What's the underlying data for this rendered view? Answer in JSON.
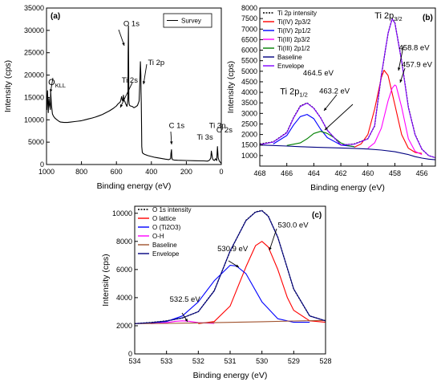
{
  "chart_data": [
    {
      "panel": "(a)",
      "type": "line",
      "xlabel": "Binding energy (eV)",
      "ylabel": "Intensity (cps)",
      "xlim": [
        1000,
        0
      ],
      "ylim": [
        0,
        35000
      ],
      "xticks": [
        1000,
        800,
        600,
        400,
        200,
        0
      ],
      "yticks": [
        0,
        5000,
        10000,
        15000,
        20000,
        25000,
        30000,
        35000
      ],
      "legend": [
        "Survey"
      ],
      "legend_position": "top-right",
      "series": [
        {
          "name": "Survey",
          "color": "#000000",
          "x": [
            998,
            994,
            990,
            986,
            982,
            978,
            976,
            972,
            966,
            960,
            950,
            940,
            930,
            920,
            900,
            880,
            860,
            840,
            820,
            800,
            780,
            760,
            740,
            720,
            700,
            680,
            660,
            640,
            620,
            600,
            590,
            580,
            575,
            570,
            566,
            562,
            560,
            556,
            552,
            548,
            545,
            542,
            540,
            537,
            534,
            533,
            531,
            530,
            529,
            527,
            524,
            520,
            510,
            500,
            490,
            480,
            470,
            466,
            463,
            460,
            459,
            458,
            457,
            455,
            452,
            448,
            440,
            420,
            400,
            380,
            350,
            320,
            300,
            290,
            288,
            285,
            283,
            280,
            270,
            250,
            200,
            150,
            100,
            80,
            70,
            65,
            60,
            57,
            50,
            45,
            40,
            36,
            34,
            30,
            26,
            22,
            18,
            12,
            6,
            2
          ],
          "y": [
            12200,
            16500,
            11600,
            14800,
            13200,
            12300,
            16300,
            13400,
            11300,
            10800,
            10300,
            10000,
            9700,
            9500,
            9400,
            9400,
            9500,
            9600,
            9700,
            9800,
            10000,
            10200,
            10400,
            10600,
            10900,
            11200,
            11600,
            12000,
            12500,
            13100,
            13600,
            13900,
            14300,
            15200,
            14400,
            14100,
            15500,
            14300,
            14100,
            13700,
            13400,
            13200,
            13000,
            13600,
            15000,
            25000,
            31000,
            21000,
            14300,
            13500,
            13200,
            13100,
            13000,
            12700,
            12900,
            13200,
            14200,
            18500,
            23000,
            20000,
            16200,
            13800,
            11000,
            4000,
            2700,
            2500,
            2300,
            2000,
            1800,
            1600,
            1400,
            1200,
            1100,
            1300,
            2500,
            3300,
            1600,
            1100,
            1000,
            950,
            900,
            850,
            800,
            750,
            900,
            1100,
            1500,
            3000,
            1300,
            1000,
            900,
            1100,
            1300,
            1100,
            900,
            4000,
            1500,
            800,
            500,
            300
          ]
        }
      ],
      "annotations": [
        {
          "text": "O",
          "sub": "KLL",
          "x": 990,
          "y": 17800
        },
        {
          "text": "O 1s",
          "x": 560,
          "y": 31000
        },
        {
          "text": "Ti 2s",
          "x": 570,
          "y": 18300
        },
        {
          "text": "Ti 2p",
          "x": 420,
          "y": 22300
        },
        {
          "text": "C 1s",
          "x": 300,
          "y": 8200
        },
        {
          "text": "Ti 3p",
          "x": 70,
          "y": 8200
        },
        {
          "text": "Ti 3s",
          "x": 140,
          "y": 5600
        },
        {
          "text": "O 2s",
          "x": 28,
          "y": 7200
        }
      ]
    },
    {
      "panel": "(b)",
      "type": "line",
      "xlabel": "Binding energy (eV)",
      "ylabel": "Intensity (cps)",
      "xlim": [
        468,
        455
      ],
      "ylim": [
        500,
        8000
      ],
      "xticks": [
        468,
        466,
        464,
        462,
        460,
        458,
        456
      ],
      "yticks": [
        1000,
        1500,
        2000,
        2500,
        3000,
        3500,
        4000,
        4500,
        5000,
        5500,
        6000,
        6500,
        7000,
        7500,
        8000
      ],
      "legend_position": "top-left",
      "series": [
        {
          "name": "Ti 2p intensity",
          "color": "#000000",
          "dash": true,
          "x": [
            468,
            467,
            466,
            465.5,
            465,
            464.5,
            464,
            463.5,
            463,
            462,
            461,
            460,
            459.5,
            459,
            458.5,
            458.2,
            458,
            457.5,
            457,
            456.5,
            456,
            455.5,
            455
          ],
          "y": [
            1550,
            1650,
            2100,
            2800,
            3350,
            3500,
            3250,
            2800,
            2200,
            1500,
            1550,
            1800,
            2400,
            4800,
            6800,
            7500,
            7300,
            5500,
            3300,
            2000,
            1300,
            1000,
            900
          ]
        },
        {
          "name": "Ti(IV) 2p3/2",
          "color": "#ff0000",
          "x": [
            461,
            460.5,
            460,
            459.5,
            459,
            458.8,
            458.5,
            458,
            457.5,
            457,
            456.5,
            456
          ],
          "y": [
            1400,
            1550,
            2000,
            3200,
            4700,
            5050,
            4800,
            3400,
            2000,
            1350,
            1150,
            1100
          ]
        },
        {
          "name": "Ti(IV) 2p1/2",
          "color": "#0000ff",
          "x": [
            467,
            466,
            465.5,
            465,
            464.5,
            464,
            463.5,
            463,
            462,
            461
          ],
          "y": [
            1550,
            1950,
            2450,
            2850,
            2950,
            2750,
            2250,
            1850,
            1500,
            1420
          ]
        },
        {
          "name": "Ti(III) 2p3/2",
          "color": "#ff00ff",
          "x": [
            460,
            459.5,
            459,
            458.5,
            458.2,
            458,
            457.9,
            457.5,
            457,
            456.5,
            456
          ],
          "y": [
            1350,
            1600,
            2300,
            3600,
            4200,
            4350,
            4300,
            3300,
            1800,
            1200,
            1050
          ]
        },
        {
          "name": "Ti(III) 2p1/2",
          "color": "#008000",
          "x": [
            466,
            465,
            464.5,
            464,
            463.5,
            463,
            462.5,
            462,
            461.5,
            461
          ],
          "y": [
            1480,
            1600,
            1800,
            2050,
            2150,
            2050,
            1850,
            1600,
            1480,
            1420
          ]
        },
        {
          "name": "Baseline",
          "color": "#000080",
          "x": [
            468,
            467,
            466,
            465,
            464,
            463,
            462,
            461,
            460,
            459,
            458,
            457,
            456.5,
            456,
            455.5,
            455
          ],
          "y": [
            1500,
            1480,
            1450,
            1420,
            1400,
            1380,
            1360,
            1340,
            1310,
            1260,
            1180,
            1050,
            950,
            880,
            830,
            800
          ]
        },
        {
          "name": "Envelope",
          "color": "#8000ff",
          "x": [
            468,
            467,
            466,
            465.5,
            465,
            464.5,
            464,
            463.5,
            463,
            462,
            461,
            460,
            459.5,
            459,
            458.5,
            458.2,
            458,
            457.5,
            457,
            456.5,
            456,
            455.5,
            455
          ],
          "y": [
            1520,
            1640,
            2080,
            2780,
            3330,
            3490,
            3240,
            2790,
            2200,
            1510,
            1540,
            1790,
            2420,
            4820,
            6810,
            7480,
            7280,
            5480,
            3280,
            1980,
            1300,
            1000,
            900
          ]
        }
      ],
      "annotations": [
        {
          "text": "Ti 2p",
          "sub": "3/2",
          "x": 459.5,
          "y": 7500
        },
        {
          "text": "458.8 eV",
          "x": 457.7,
          "y": 6000
        },
        {
          "text": "457.9 eV",
          "x": 457.5,
          "y": 5200
        },
        {
          "text": "464.5 eV",
          "x": 464.8,
          "y": 4800
        },
        {
          "text": "Ti 2p",
          "sub": "1/2",
          "x": 466.5,
          "y": 3900
        },
        {
          "text": "463.2 eV",
          "x": 463.6,
          "y": 3950
        }
      ]
    },
    {
      "panel": "(c)",
      "type": "line",
      "xlabel": "Binding energy (eV)",
      "ylabel": "Intensity (cps)",
      "xlim": [
        534,
        528
      ],
      "ylim": [
        0,
        10500
      ],
      "xticks": [
        534,
        533,
        532,
        531,
        530,
        529,
        528
      ],
      "yticks": [
        0,
        2000,
        4000,
        6000,
        8000,
        10000
      ],
      "legend_position": "top-left",
      "series": [
        {
          "name": "O 1s intensity",
          "color": "#000000",
          "dash": true,
          "x": [
            534,
            533.5,
            533,
            532.5,
            532,
            531.5,
            531,
            530.5,
            530.2,
            530,
            529.8,
            529.5,
            529,
            528.5,
            528
          ],
          "y": [
            2150,
            2230,
            2350,
            2550,
            3000,
            4500,
            7300,
            9500,
            10100,
            10200,
            9800,
            8300,
            4600,
            2700,
            2350
          ]
        },
        {
          "name": "O lattice",
          "color": "#ff0000",
          "x": [
            532,
            531.5,
            531,
            530.5,
            530.2,
            530,
            529.8,
            529.5,
            529.2,
            529,
            528.5,
            528
          ],
          "y": [
            2150,
            2300,
            3400,
            6200,
            7700,
            8000,
            7600,
            6000,
            4000,
            3100,
            2350,
            2250
          ]
        },
        {
          "name": "O (Ti2O3)",
          "color": "#0000ff",
          "x": [
            533.5,
            533,
            532.5,
            532,
            531.5,
            531,
            530.8,
            530.5,
            530,
            529.5,
            529,
            528.5
          ],
          "y": [
            2200,
            2300,
            2700,
            3700,
            5200,
            6300,
            6250,
            5700,
            3700,
            2500,
            2250,
            2250
          ]
        },
        {
          "name": "O-H",
          "color": "#ff00ff",
          "x": [
            533.5,
            533,
            532.7,
            532.5,
            532.3,
            532,
            531.5
          ],
          "y": [
            2150,
            2220,
            2320,
            2350,
            2320,
            2220,
            2170
          ]
        },
        {
          "name": "Baseline",
          "color": "#a0522d",
          "x": [
            534,
            533,
            532,
            531,
            530,
            529,
            528
          ],
          "y": [
            2150,
            2170,
            2200,
            2240,
            2290,
            2340,
            2380
          ]
        },
        {
          "name": "Envelope",
          "color": "#000080",
          "x": [
            534,
            533.5,
            533,
            532.5,
            532,
            531.5,
            531,
            530.5,
            530.2,
            530,
            529.8,
            529.5,
            529,
            528.5,
            528
          ],
          "y": [
            2150,
            2220,
            2340,
            2560,
            3000,
            4480,
            7320,
            9480,
            10080,
            10180,
            9780,
            8280,
            4620,
            2700,
            2350
          ]
        }
      ],
      "annotations": [
        {
          "text": "530.0 eV",
          "x": 529.5,
          "y": 9000
        },
        {
          "text": "530.9 eV",
          "x": 531.4,
          "y": 7300
        },
        {
          "text": "532.5 eV",
          "x": 532.9,
          "y": 3700
        }
      ]
    }
  ]
}
